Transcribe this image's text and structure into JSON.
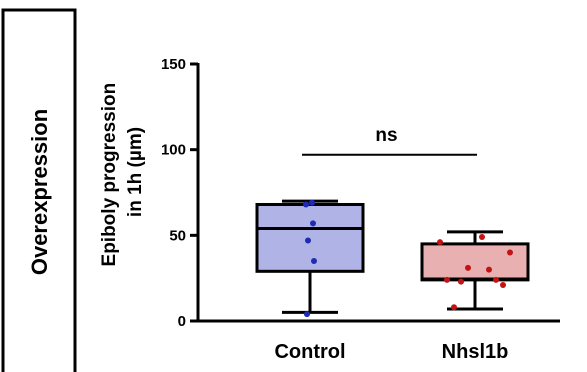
{
  "side_label": "Overexpression",
  "chart_data": {
    "type": "box",
    "ylabel_lines": [
      "Epiboly progression",
      "in 1h (µm)"
    ],
    "ylim": [
      0,
      150
    ],
    "yticks": [
      0,
      50,
      100,
      150
    ],
    "yticks_text": [
      "0",
      "50",
      "100",
      "150"
    ],
    "categories": [
      "Control",
      "Nhsl1b"
    ],
    "series": [
      {
        "category": "Control",
        "min": 5,
        "q1": 29,
        "median": 54,
        "q3": 68,
        "max": 70,
        "points": [
          4,
          35,
          47,
          57,
          68,
          69
        ],
        "box_color": "#b0b3e6",
        "point_color": "#1f2bb5"
      },
      {
        "category": "Nhsl1b",
        "min": 7,
        "q1": 24,
        "median": 24.5,
        "q3": 45,
        "max": 52,
        "points": [
          8,
          21,
          23,
          24,
          24,
          30,
          31,
          40,
          46,
          49
        ],
        "box_color": "#e8b0b0",
        "point_color": "#c21414"
      }
    ],
    "annotation": {
      "text": "ns",
      "y": 97
    },
    "grid": false
  }
}
